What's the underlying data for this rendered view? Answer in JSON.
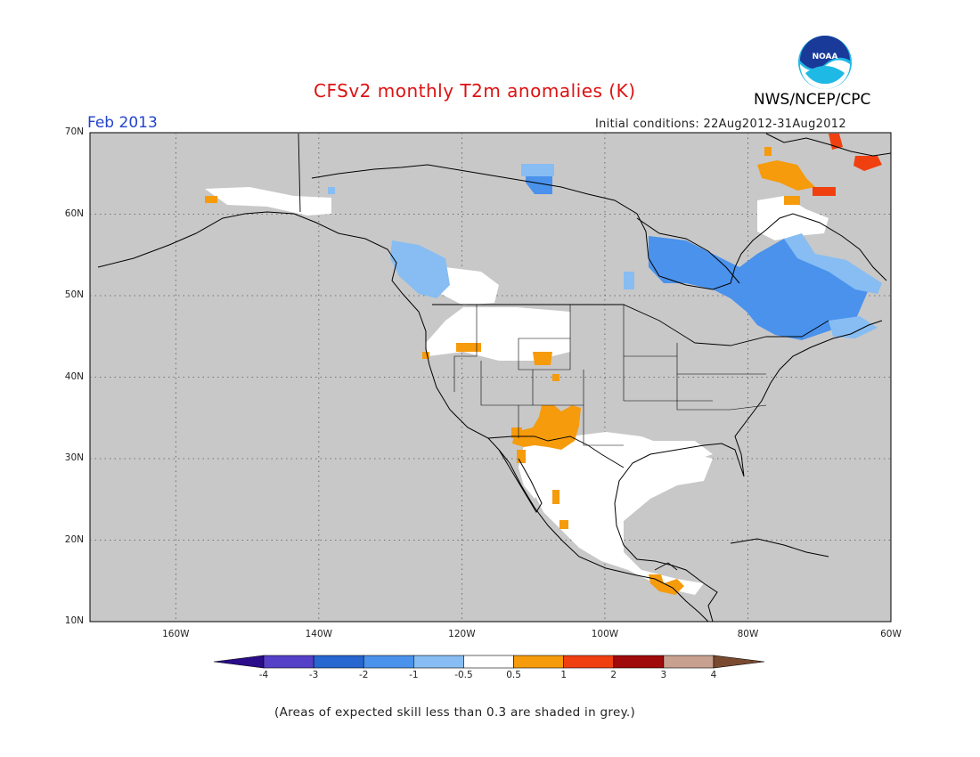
{
  "header": {
    "title": "CFSv2 monthly T2m anomalies (K)",
    "target_month": "Feb 2013",
    "initial_conditions": "Initial conditions: 22Aug2012-31Aug2012",
    "agency": "NWS/NCEP/CPC",
    "logo_text": "NOAA"
  },
  "map": {
    "projection": "lat-lon",
    "lon_range": [
      -172,
      -60
    ],
    "lat_range": [
      10,
      70
    ],
    "lat_labels": [
      "70N",
      "60N",
      "50N",
      "40N",
      "30N",
      "20N",
      "10N"
    ],
    "lon_labels": [
      "160W",
      "140W",
      "120W",
      "100W",
      "80W",
      "60W"
    ],
    "background_color": "#c8c8c8"
  },
  "colorbar": {
    "labels": [
      "-4",
      "-3",
      "-2",
      "-1",
      "-0.5",
      "0.5",
      "1",
      "2",
      "3",
      "4"
    ],
    "colors": [
      "#2b0c8a",
      "#5540c8",
      "#2866d0",
      "#4a92ec",
      "#87bdf2",
      "#ffffff",
      "#f59b0c",
      "#f04010",
      "#a00a0a",
      "#c8a090",
      "#7a4a30"
    ]
  },
  "footnote": "(Areas of expected skill less than 0.3 are shaded in grey.)",
  "anomaly_regions": [
    {
      "level": "0.5 to 1",
      "color": "#f59b0c",
      "area": "US Southwest / New Mexico"
    },
    {
      "level": "0.5 to 1",
      "color": "#f59b0c",
      "area": "Southern Mexico / Central America"
    },
    {
      "level": "1 to 2",
      "color": "#f04010",
      "area": "Baffin Island / Greenland coast"
    },
    {
      "level": "-2 to -1",
      "color": "#4a92ec",
      "area": "Hudson Bay / Quebec"
    },
    {
      "level": "-1 to -0.5",
      "color": "#87bdf2",
      "area": "British Columbia"
    },
    {
      "level": "-0.5 to 0.5",
      "color": "#ffffff",
      "area": "Mexico / Gulf Coast / Great Basin"
    }
  ]
}
